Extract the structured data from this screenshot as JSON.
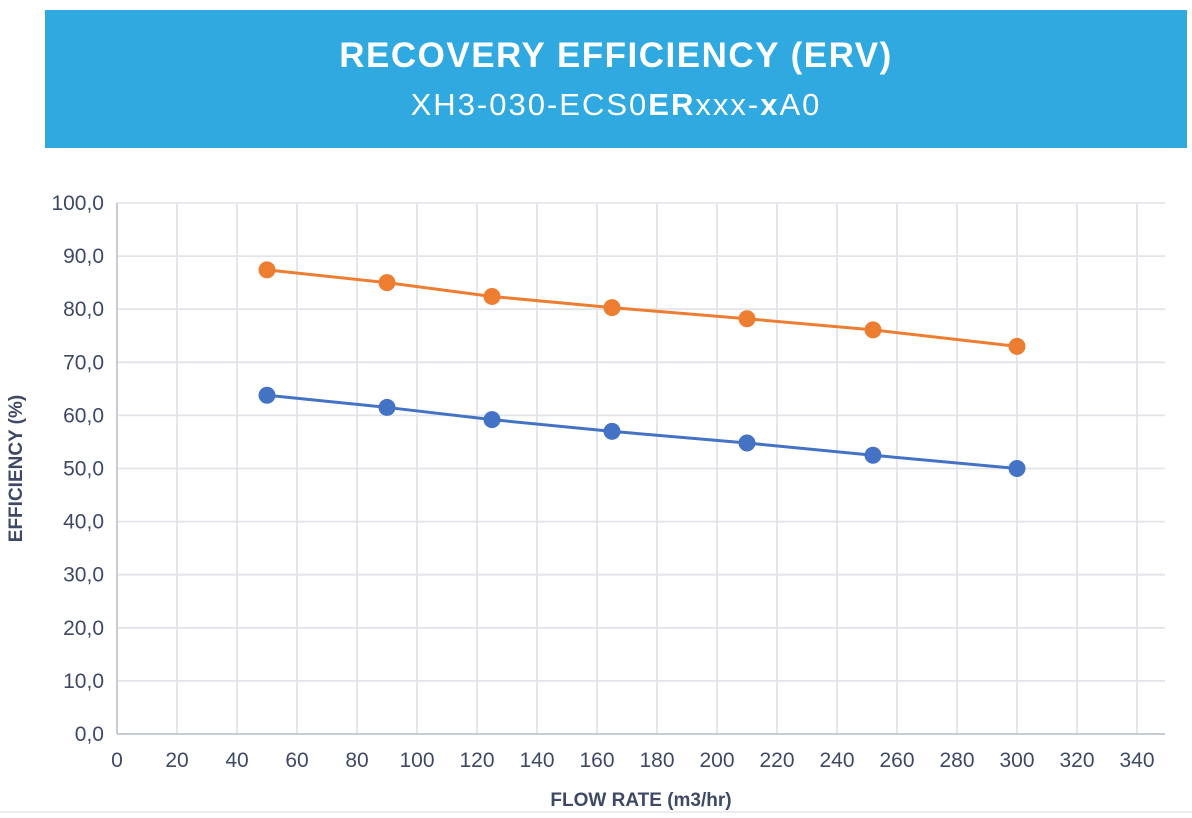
{
  "header": {
    "title": "RECOVERY EFFICIENCY (ERV)",
    "subtitle": "XH3-030-ECS0ERxxx-xA0",
    "subtitle_parts": [
      "XH3-030-ECS0",
      "ER",
      "xxx-",
      "x",
      "A0"
    ],
    "background_color": "#2FA9E0",
    "text_color": "#FFFFFF"
  },
  "chart_data": {
    "type": "line",
    "title": "RECOVERY EFFICIENCY (ERV)",
    "subtitle": "XH3-030-ECS0ERxxx-xA0",
    "xlabel": "FLOW RATE (m3/hr)",
    "ylabel": "EFFICIENCY (%)",
    "xlim": [
      0,
      340
    ],
    "ylim": [
      0,
      100
    ],
    "x_ticks": [
      0,
      20,
      40,
      60,
      80,
      100,
      120,
      140,
      160,
      180,
      200,
      220,
      240,
      260,
      280,
      300,
      320,
      340
    ],
    "y_ticks": [
      0,
      10,
      20,
      30,
      40,
      50,
      60,
      70,
      80,
      90,
      100
    ],
    "y_tick_decimal_format": "comma-one-decimal",
    "grid": true,
    "legend": "none",
    "x": [
      50,
      90,
      125,
      165,
      210,
      252,
      300
    ],
    "series": [
      {
        "name": "upper-series-orange",
        "color": "#ED7D31",
        "values": [
          87.4,
          85.0,
          82.4,
          80.3,
          78.2,
          76.1,
          73.0
        ]
      },
      {
        "name": "lower-series-blue",
        "color": "#4472C4",
        "values": [
          63.8,
          61.5,
          59.2,
          57.0,
          54.8,
          52.5,
          50.0
        ]
      }
    ]
  },
  "axis_style": {
    "tick_color": "#3E4965",
    "title_color": "#3E4965",
    "grid_color": "#E2E4E9",
    "axis_line_color": "#C7CBD4"
  }
}
